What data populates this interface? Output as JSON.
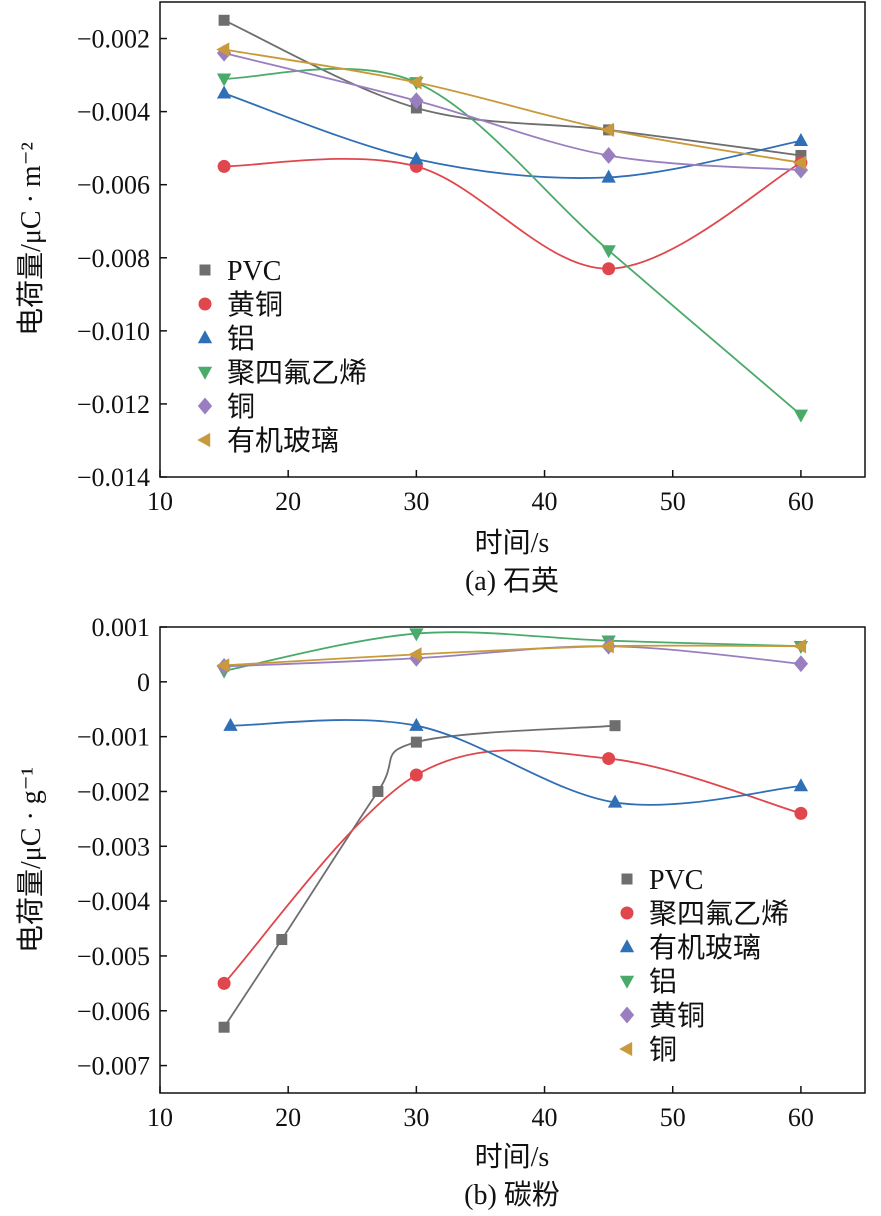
{
  "chart_data": [
    {
      "type": "line",
      "caption": "(a) 石英",
      "xlabel": "时间/s",
      "ylabel": "电荷量/μC · m⁻²",
      "xlim": [
        10,
        65
      ],
      "ylim": [
        -0.014,
        -0.001
      ],
      "xticks": [
        10,
        20,
        30,
        40,
        50,
        60
      ],
      "xtick_labels": [
        "10",
        "20",
        "30",
        "40",
        "50",
        "60"
      ],
      "yticks": [
        -0.002,
        -0.004,
        -0.006,
        -0.008,
        -0.01,
        -0.012,
        -0.014
      ],
      "ytick_labels": [
        "−0.002",
        "−0.004",
        "−0.006",
        "−0.008",
        "−0.010",
        "−0.012",
        "−0.014"
      ],
      "legend_position": "center-left",
      "series": [
        {
          "name": "PVC",
          "marker": "square",
          "color": "#6e6e6e",
          "x": [
            15,
            30,
            45,
            60
          ],
          "y": [
            -0.0015,
            -0.0039,
            -0.0045,
            -0.0052
          ]
        },
        {
          "name": "黄铜",
          "marker": "circle",
          "color": "#e0474c",
          "x": [
            15,
            30,
            45,
            60
          ],
          "y": [
            -0.0055,
            -0.0055,
            -0.0083,
            -0.0054
          ]
        },
        {
          "name": "铝",
          "marker": "triangle-up",
          "color": "#2f6fb5",
          "x": [
            15,
            30,
            45,
            60
          ],
          "y": [
            -0.0035,
            -0.0053,
            -0.0058,
            -0.0048
          ]
        },
        {
          "name": "聚四氟乙烯",
          "marker": "triangle-down",
          "color": "#4aaa6a",
          "x": [
            15,
            30,
            45,
            60
          ],
          "y": [
            -0.0031,
            -0.0032,
            -0.0078,
            -0.0123
          ]
        },
        {
          "name": "铜",
          "marker": "diamond",
          "color": "#9a7fc0",
          "x": [
            15,
            30,
            45,
            60
          ],
          "y": [
            -0.0024,
            -0.0037,
            -0.0052,
            -0.0056
          ]
        },
        {
          "name": "有机玻璃",
          "marker": "triangle-left",
          "color": "#c99a3b",
          "x": [
            15,
            30,
            45,
            60
          ],
          "y": [
            -0.0023,
            -0.0032,
            -0.0045,
            -0.0054
          ]
        }
      ]
    },
    {
      "type": "line",
      "caption": "(b) 碳粉",
      "xlabel": "时间/s",
      "ylabel": "电荷量/μC · g⁻¹",
      "xlim": [
        10,
        65
      ],
      "ylim": [
        -0.0075,
        0.001
      ],
      "xticks": [
        10,
        20,
        30,
        40,
        50,
        60
      ],
      "xtick_labels": [
        "10",
        "20",
        "30",
        "40",
        "50",
        "60"
      ],
      "yticks": [
        0.001,
        0,
        -0.001,
        -0.002,
        -0.003,
        -0.004,
        -0.005,
        -0.006,
        -0.007
      ],
      "ytick_labels": [
        "0.001",
        "0",
        "−0.001",
        "−0.002",
        "−0.003",
        "−0.004",
        "−0.005",
        "−0.006",
        "−0.007"
      ],
      "legend_position": "lower-right",
      "series": [
        {
          "name": "PVC",
          "marker": "square",
          "color": "#6e6e6e",
          "x": [
            15,
            19.5,
            27,
            30,
            45.5
          ],
          "y": [
            -0.0063,
            -0.0047,
            -0.002,
            -0.0011,
            -0.0008
          ]
        },
        {
          "name": "聚四氟乙烯",
          "marker": "circle",
          "color": "#e0474c",
          "x": [
            15,
            30,
            45,
            60
          ],
          "y": [
            -0.0055,
            -0.0017,
            -0.0014,
            -0.0024
          ]
        },
        {
          "name": "有机玻璃",
          "marker": "triangle-up",
          "color": "#2f6fb5",
          "x": [
            15.5,
            30,
            45.5,
            60
          ],
          "y": [
            -0.0008,
            -0.0008,
            -0.0022,
            -0.0019
          ]
        },
        {
          "name": "铝",
          "marker": "triangle-down",
          "color": "#4aaa6a",
          "x": [
            15,
            30,
            45,
            60
          ],
          "y": [
            0.0002,
            0.00088,
            0.00075,
            0.00065
          ]
        },
        {
          "name": "黄铜",
          "marker": "diamond",
          "color": "#9a7fc0",
          "x": [
            15,
            30,
            45,
            60
          ],
          "y": [
            0.00028,
            0.00043,
            0.00065,
            0.00033
          ]
        },
        {
          "name": "铜",
          "marker": "triangle-left",
          "color": "#c99a3b",
          "x": [
            15,
            30,
            45,
            60
          ],
          "y": [
            0.0003,
            0.0005,
            0.00065,
            0.00065
          ]
        }
      ]
    }
  ]
}
